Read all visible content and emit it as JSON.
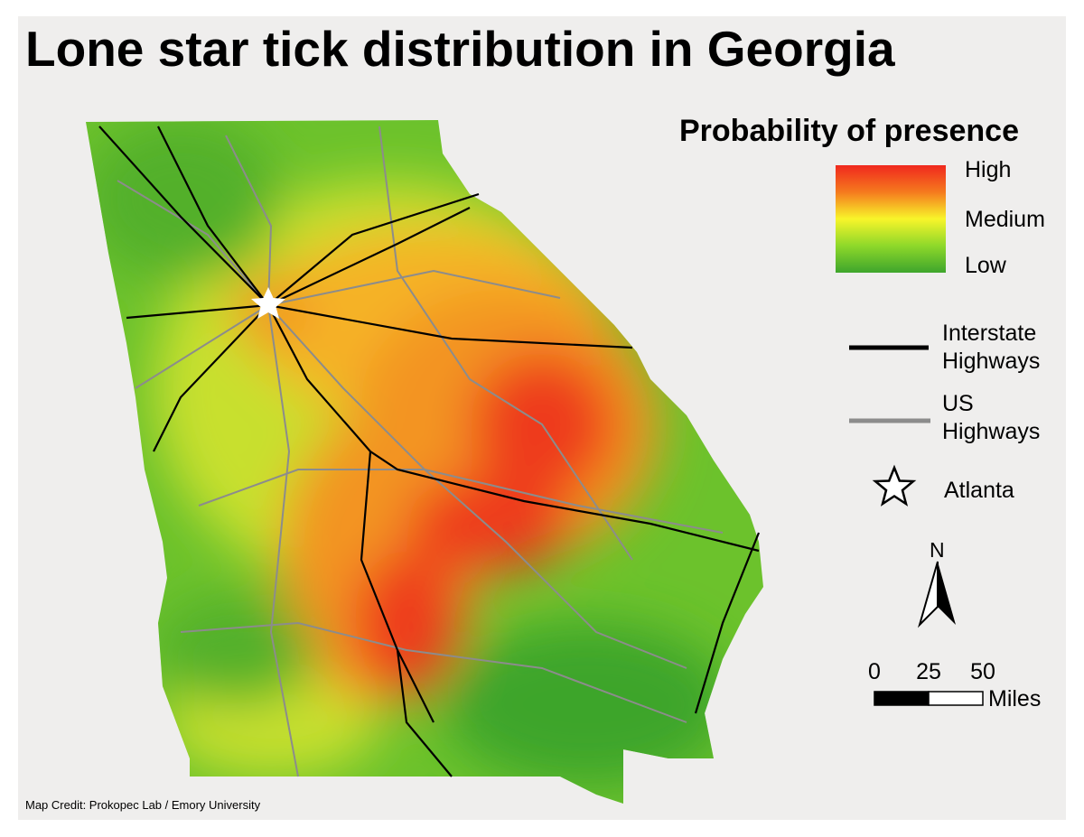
{
  "title": "Lone star tick distribution in Georgia",
  "legend": {
    "title": "Probability of presence",
    "gradient": {
      "high": "High",
      "medium": "Medium",
      "low": "Low"
    },
    "lines": [
      {
        "label": "Interstate Highways",
        "color": "#000000"
      },
      {
        "label": "US Highways",
        "color": "#8c8c8c"
      }
    ],
    "point": {
      "label": "Atlanta"
    }
  },
  "north_arrow": "N",
  "scale": {
    "ticks": [
      0,
      25,
      50
    ],
    "unit": "Miles"
  },
  "credit": "Map Credit: Prokopec Lab / Emory University"
}
